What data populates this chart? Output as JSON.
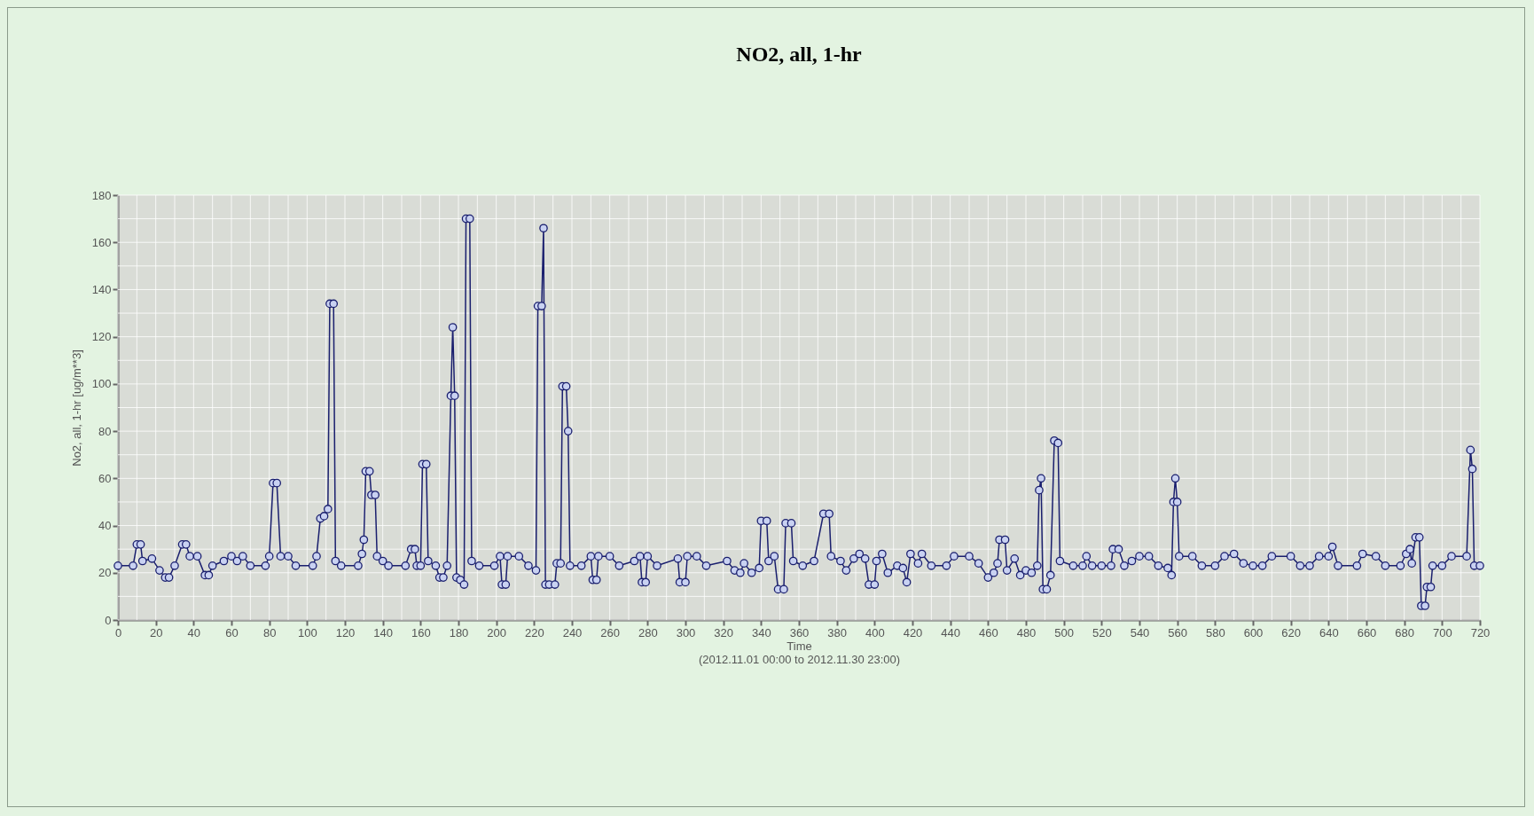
{
  "chart_data": {
    "type": "line",
    "title": "NO2, all, 1-hr",
    "xlabel": "Time\n(2012.11.01 00:00 to 2012.11.30 23:00)",
    "ylabel": "No2, all, 1-hr [ug/m**3]",
    "xlim": [
      0,
      720
    ],
    "ylim": [
      0,
      180
    ],
    "xticks": [
      0,
      {
        "value": 10,
        "label": null
      },
      20,
      {
        "value": 30,
        "label": null
      },
      40,
      {
        "value": 50,
        "label": null
      },
      60,
      {
        "value": 70,
        "label": null
      },
      80,
      {
        "value": 90,
        "label": null
      },
      100,
      {
        "value": 110,
        "label": null
      },
      120,
      {
        "value": 130,
        "label": null
      },
      140,
      {
        "value": 150,
        "label": null
      },
      160,
      {
        "value": 170,
        "label": null
      },
      180,
      {
        "value": 190,
        "label": null
      },
      200,
      {
        "value": 210,
        "label": null
      },
      220,
      {
        "value": 230,
        "label": null
      },
      240,
      {
        "value": 250,
        "label": null
      },
      260,
      {
        "value": 270,
        "label": null
      },
      280,
      {
        "value": 290,
        "label": null
      },
      300,
      {
        "value": 310,
        "label": null
      },
      320,
      {
        "value": 330,
        "label": null
      },
      340,
      {
        "value": 350,
        "label": null
      },
      360,
      {
        "value": 370,
        "label": null
      },
      380,
      {
        "value": 390,
        "label": null
      },
      400,
      {
        "value": 410,
        "label": null
      },
      420,
      {
        "value": 430,
        "label": null
      },
      440,
      {
        "value": 450,
        "label": null
      },
      460,
      {
        "value": 470,
        "label": null
      },
      480,
      {
        "value": 490,
        "label": null
      },
      500,
      {
        "value": 510,
        "label": null
      },
      520,
      {
        "value": 530,
        "label": null
      },
      540,
      {
        "value": 550,
        "label": null
      },
      560,
      {
        "value": 570,
        "label": null
      },
      580,
      {
        "value": 590,
        "label": null
      },
      600,
      {
        "value": 610,
        "label": null
      },
      620,
      {
        "value": 630,
        "label": null
      },
      640,
      {
        "value": 650,
        "label": null
      },
      660,
      {
        "value": 670,
        "label": null
      },
      680,
      {
        "value": 690,
        "label": null
      },
      700,
      {
        "value": 710,
        "label": null
      },
      720
    ],
    "yticks": [
      0,
      {
        "value": 10,
        "label": null
      },
      20,
      {
        "value": 30,
        "label": null
      },
      40,
      {
        "value": 50,
        "label": null
      },
      60,
      {
        "value": 70,
        "label": null
      },
      80,
      {
        "value": 90,
        "label": null
      },
      100,
      {
        "value": 110,
        "label": null
      },
      120,
      {
        "value": 130,
        "label": null
      },
      140,
      {
        "value": 150,
        "label": null
      },
      160,
      {
        "value": 170,
        "label": null
      },
      180
    ],
    "grid": true,
    "marker": "circle",
    "line_style": "solid",
    "series": [
      {
        "color": "#1a1f6e",
        "x": [
          0,
          8,
          10,
          12,
          13,
          18,
          22,
          25,
          27,
          30,
          34,
          36,
          38,
          42,
          46,
          48,
          50,
          56,
          60,
          63,
          66,
          70,
          78,
          80,
          82,
          84,
          86,
          90,
          94,
          103,
          105,
          107,
          109,
          111,
          112,
          114,
          115,
          118,
          127,
          129,
          130,
          131,
          133,
          134,
          136,
          137,
          140,
          143,
          152,
          155,
          157,
          158,
          160,
          161,
          163,
          164,
          168,
          170,
          172,
          174,
          176,
          177,
          178,
          179,
          181,
          183,
          184,
          186,
          187,
          191,
          199,
          202,
          203,
          205,
          206,
          212,
          217,
          221,
          222,
          224,
          225,
          226,
          228,
          231,
          232,
          234,
          235,
          237,
          238,
          239,
          245,
          250,
          251,
          253,
          254,
          260,
          265,
          273,
          276,
          277,
          279,
          280,
          285,
          296,
          297,
          300,
          301,
          306,
          311,
          322,
          326,
          329,
          331,
          335,
          339,
          340,
          343,
          344,
          347,
          349,
          352,
          353,
          356,
          357,
          362,
          368,
          373,
          376,
          377,
          382,
          385,
          389,
          392,
          395,
          397,
          400,
          401,
          404,
          407,
          412,
          415,
          417,
          419,
          423,
          425,
          430,
          438,
          442,
          450,
          455,
          460,
          463,
          465,
          466,
          469,
          470,
          474,
          477,
          480,
          483,
          486,
          487,
          488,
          489,
          491,
          493,
          495,
          497,
          498,
          505,
          510,
          512,
          515,
          520,
          525,
          526,
          529,
          532,
          536,
          540,
          545,
          550,
          555,
          557,
          558,
          559,
          560,
          561,
          568,
          573,
          580,
          585,
          590,
          595,
          600,
          605,
          610,
          620,
          625,
          630,
          635,
          640,
          642,
          645,
          655,
          658,
          665,
          670,
          678,
          681,
          683,
          684,
          686,
          688,
          689,
          691,
          692,
          694,
          695,
          700,
          705,
          713,
          715,
          716,
          717,
          720
        ],
        "values": [
          23,
          23,
          32,
          32,
          25,
          26,
          21,
          18,
          18,
          23,
          32,
          32,
          27,
          27,
          19,
          19,
          23,
          25,
          27,
          25,
          27,
          23,
          23,
          27,
          58,
          58,
          27,
          27,
          23,
          23,
          27,
          43,
          44,
          47,
          134,
          134,
          25,
          23,
          23,
          28,
          34,
          63,
          63,
          53,
          53,
          27,
          25,
          23,
          23,
          30,
          30,
          23,
          23,
          66,
          66,
          25,
          23,
          18,
          18,
          23,
          95,
          124,
          95,
          18,
          17,
          15,
          170,
          170,
          25,
          23,
          23,
          27,
          15,
          15,
          27,
          27,
          23,
          21,
          133,
          133,
          166,
          15,
          15,
          15,
          24,
          24,
          99,
          99,
          80,
          23,
          23,
          27,
          17,
          17,
          27,
          27,
          23,
          25,
          27,
          16,
          16,
          27,
          23,
          26,
          16,
          16,
          27,
          27,
          23,
          25,
          21,
          20,
          24,
          20,
          22,
          42,
          42,
          25,
          27,
          13,
          13,
          41,
          41,
          25,
          23,
          25,
          45,
          45,
          27,
          25,
          21,
          26,
          28,
          26,
          15,
          15,
          25,
          28,
          20,
          23,
          22,
          16,
          28,
          24,
          28,
          23,
          23,
          27,
          27,
          24,
          18,
          20,
          24,
          34,
          34,
          21,
          26,
          19,
          21,
          20,
          23,
          55,
          60,
          13,
          13,
          19,
          76,
          75,
          25,
          23,
          23,
          27,
          23,
          23,
          23,
          30,
          30,
          23,
          25,
          27,
          27,
          23,
          22,
          19,
          50,
          60,
          50,
          27,
          27,
          23,
          23,
          27,
          28,
          24,
          23,
          23,
          27,
          27,
          23,
          23,
          27,
          27,
          31,
          23,
          23,
          28,
          27,
          23,
          23,
          28,
          30,
          24,
          35,
          35,
          6,
          6,
          14,
          14,
          23,
          23,
          27,
          27,
          72,
          64,
          23,
          23
        ]
      }
    ]
  }
}
